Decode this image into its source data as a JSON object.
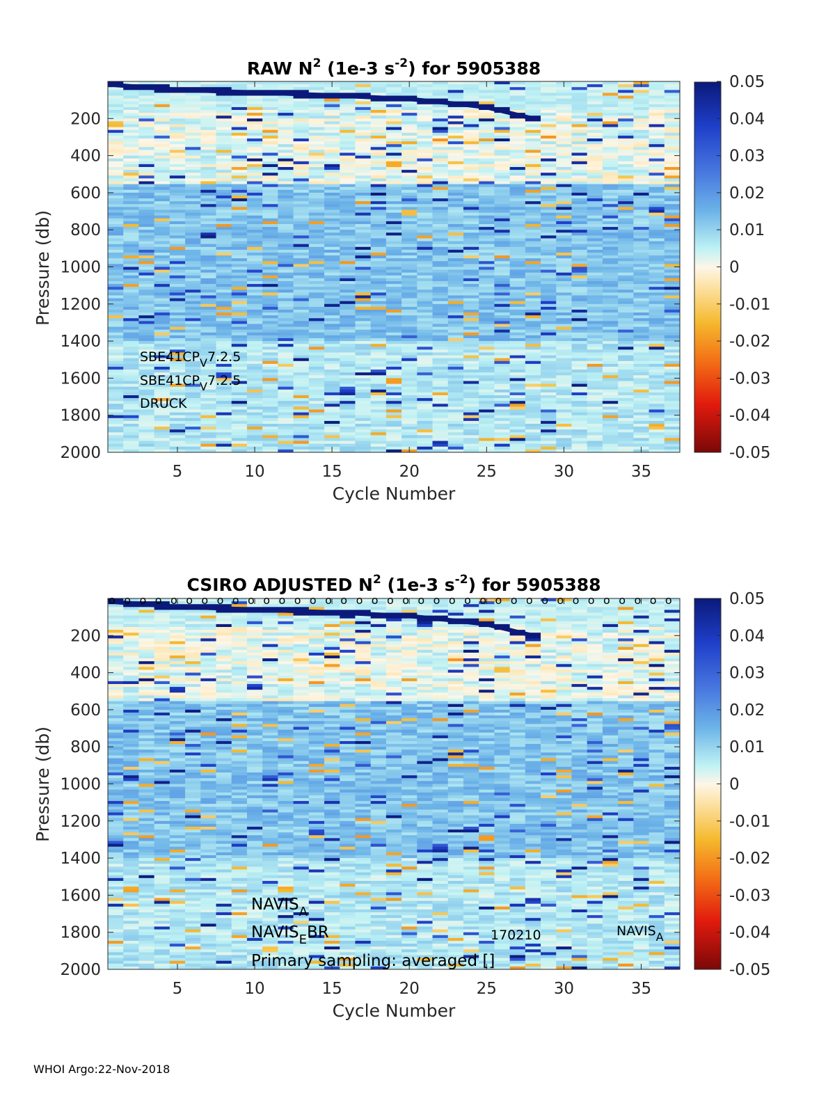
{
  "footer": "WHOI Argo:22-Nov-2018",
  "colorbar": {
    "ticks": [
      "0.05",
      "0.04",
      "0.03",
      "0.02",
      "0.01",
      "0",
      "-0.01",
      "-0.02",
      "-0.03",
      "-0.04",
      "-0.05"
    ],
    "range": [
      -0.05,
      0.05
    ]
  },
  "chart_data": [
    {
      "type": "heatmap",
      "title_parts": [
        "RAW N",
        "2",
        " (1e-3 s",
        "-2",
        ") for 5905388"
      ],
      "xlabel": "Cycle Number",
      "ylabel": "Pressure (db)",
      "xlim": [
        1,
        37
      ],
      "ylim": [
        0,
        2000
      ],
      "y_reversed": true,
      "xticks": [
        "5",
        "10",
        "15",
        "20",
        "25",
        "30",
        "35"
      ],
      "yticks": [
        "200",
        "400",
        "600",
        "800",
        "1000",
        "1200",
        "1400",
        "1600",
        "1800",
        "2000"
      ],
      "color_range": [
        -0.05,
        0.05
      ],
      "mixed_layer_depth": [
        [
          1,
          20
        ],
        [
          5,
          45
        ],
        [
          10,
          60
        ],
        [
          15,
          75
        ],
        [
          20,
          95
        ],
        [
          23,
          120
        ],
        [
          25,
          140
        ],
        [
          26,
          160
        ],
        [
          27,
          180
        ],
        [
          28,
          200
        ]
      ],
      "annotations": [
        {
          "parts": [
            "SBE41CP",
            "V",
            "7.2.5"
          ]
        },
        {
          "parts": [
            "SBE41CP",
            "V",
            "7.2.5"
          ]
        },
        {
          "parts": [
            "DRUCK"
          ]
        }
      ]
    },
    {
      "type": "heatmap",
      "title_parts": [
        "CSIRO  ADJUSTED N",
        "2",
        " (1e-3 s",
        "-2",
        ") for 5905388"
      ],
      "xlabel": "Cycle Number",
      "ylabel": "Pressure (db)",
      "xlim": [
        1,
        37
      ],
      "ylim": [
        0,
        2000
      ],
      "y_reversed": true,
      "xticks": [
        "5",
        "10",
        "15",
        "20",
        "25",
        "30",
        "35"
      ],
      "yticks": [
        "200",
        "400",
        "600",
        "800",
        "1000",
        "1200",
        "1400",
        "1600",
        "1800",
        "2000"
      ],
      "color_range": [
        -0.05,
        0.05
      ],
      "qc_marker": "o",
      "qc_cycles": [
        1,
        2,
        3,
        4,
        5,
        6,
        7,
        8,
        9,
        10,
        11,
        12,
        13,
        14,
        15,
        16,
        17,
        18,
        19,
        20,
        21,
        22,
        23,
        24,
        25,
        26,
        27,
        28,
        29,
        30,
        31,
        32,
        33,
        34,
        35,
        36,
        37
      ],
      "mixed_layer_depth": [
        [
          1,
          20
        ],
        [
          5,
          45
        ],
        [
          10,
          60
        ],
        [
          15,
          75
        ],
        [
          20,
          95
        ],
        [
          23,
          120
        ],
        [
          25,
          140
        ],
        [
          26,
          160
        ],
        [
          27,
          180
        ],
        [
          28,
          200
        ]
      ],
      "annotations": [
        {
          "parts": [
            "NAVIS",
            "A",
            ""
          ]
        },
        {
          "parts": [
            "NAVIS",
            "E",
            "BR"
          ]
        },
        {
          "parts": [
            "Primary sampling: averaged []"
          ]
        },
        {
          "parts": [
            "170210"
          ]
        },
        {
          "parts": [
            "NAVIS",
            "A",
            ""
          ]
        }
      ]
    }
  ]
}
